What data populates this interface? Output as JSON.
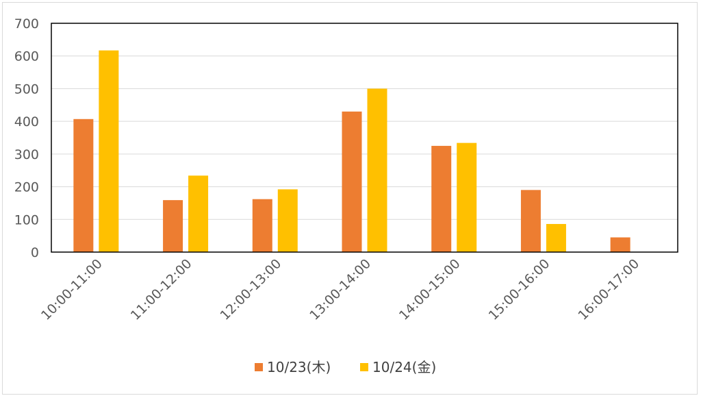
{
  "chart_data": {
    "type": "bar",
    "title": "",
    "xlabel": "",
    "ylabel": "",
    "ylim": [
      0,
      700
    ],
    "yticks": [
      0,
      100,
      200,
      300,
      400,
      500,
      600,
      700
    ],
    "grid": true,
    "legend_position": "bottom",
    "categories": [
      "10:00-11:00",
      "11:00-12:00",
      "12:00-13:00",
      "13:00-14:00",
      "14:00-15:00",
      "15:00-16:00",
      "16:00-17:00"
    ],
    "series": [
      {
        "name": "10/23(木)",
        "color": "#ED7D31",
        "values": [
          407,
          159,
          162,
          430,
          325,
          190,
          45
        ]
      },
      {
        "name": "10/24(金)",
        "color": "#FFC000",
        "values": [
          617,
          234,
          192,
          500,
          334,
          86,
          0
        ]
      }
    ]
  }
}
